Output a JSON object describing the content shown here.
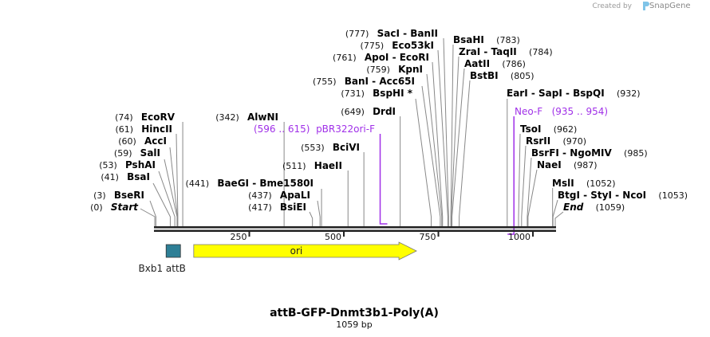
{
  "logo": {
    "created_by": "Created by",
    "brand": "SnapGene"
  },
  "sequence": {
    "name": "attB-GFP-Dnmt3b1-Poly(A)",
    "length_label": "1059 bp",
    "length": 1059
  },
  "ruler": {
    "ticks": [
      {
        "pos": 250,
        "label": "250"
      },
      {
        "pos": 500,
        "label": "500"
      },
      {
        "pos": 750,
        "label": "750"
      },
      {
        "pos": 1000,
        "label": "1000"
      }
    ]
  },
  "sites": [
    {
      "pos": 0,
      "num": "(0)",
      "name": "Start"
    },
    {
      "pos": 3,
      "num": "(3)",
      "name": "BseRI"
    },
    {
      "pos": 41,
      "num": "(41)",
      "name": "BsaI"
    },
    {
      "pos": 53,
      "num": "(53)",
      "name": "PshAI"
    },
    {
      "pos": 59,
      "num": "(59)",
      "name": "SalI"
    },
    {
      "pos": 60,
      "num": "(60)",
      "name": "AccI"
    },
    {
      "pos": 61,
      "num": "(61)",
      "name": "HincII"
    },
    {
      "pos": 74,
      "num": "(74)",
      "name": "EcoRV"
    },
    {
      "pos": 342,
      "num": "(342)",
      "name": "AlwNI"
    },
    {
      "pos": 417,
      "num": "(417)",
      "name": "BsiEI"
    },
    {
      "pos": 437,
      "num": "(437)",
      "name": "ApaLI"
    },
    {
      "pos": 441,
      "num": "(441)",
      "name": "BaeGI  - Bme1580I"
    },
    {
      "pos": 511,
      "num": "(511)",
      "name": "HaeII"
    },
    {
      "pos": 553,
      "num": "(553)",
      "name": "BciVI"
    },
    {
      "pos": 649,
      "num": "(649)",
      "name": "DrdI"
    },
    {
      "pos": 731,
      "num": "(731)",
      "name": "BspHI *"
    },
    {
      "pos": 755,
      "num": "(755)",
      "name": "BanI  - Acc65I"
    },
    {
      "pos": 759,
      "num": "(759)",
      "name": "KpnI"
    },
    {
      "pos": 761,
      "num": "(761)",
      "name": "ApoI  - EcoRI"
    },
    {
      "pos": 775,
      "num": "(775)",
      "name": "Eco53kI"
    },
    {
      "pos": 777,
      "num": "(777)",
      "name": "SacI  - BanII"
    },
    {
      "pos": 783,
      "num": "(783)",
      "name": "BsaHI"
    },
    {
      "pos": 784,
      "num": "(784)",
      "name": "ZraI  - TaqII"
    },
    {
      "pos": 786,
      "num": "(786)",
      "name": "AatII"
    },
    {
      "pos": 805,
      "num": "(805)",
      "name": "BstBI"
    },
    {
      "pos": 932,
      "num": "(932)",
      "name": "EarI  - SapI  - BspQI"
    },
    {
      "pos": 962,
      "num": "(962)",
      "name": "TsoI"
    },
    {
      "pos": 970,
      "num": "(970)",
      "name": "RsrII"
    },
    {
      "pos": 985,
      "num": "(985)",
      "name": "BsrFI  - NgoMIV"
    },
    {
      "pos": 987,
      "num": "(987)",
      "name": "NaeI"
    },
    {
      "pos": 1052,
      "num": "(1052)",
      "name": "MslI"
    },
    {
      "pos": 1053,
      "num": "(1053)",
      "name": "BtgI  - StyI  - NcoI"
    },
    {
      "pos": 1059,
      "num": "(1059)",
      "name": "End"
    }
  ],
  "primers": [
    {
      "name": "pBR322ori-F",
      "range": "(596 .. 615)",
      "start": 596,
      "end": 615,
      "color": "#a030e8"
    },
    {
      "name": "Neo-F",
      "range": "(935 .. 954)",
      "start": 935,
      "end": 954,
      "color": "#a030e8"
    }
  ],
  "features": [
    {
      "name": "Bxb1 attB",
      "start": 30,
      "end": 68,
      "color": "#2e7f96",
      "type": "box"
    },
    {
      "name": "ori",
      "start": 103,
      "end": 692,
      "color": "#ffff00",
      "type": "arrow"
    }
  ]
}
